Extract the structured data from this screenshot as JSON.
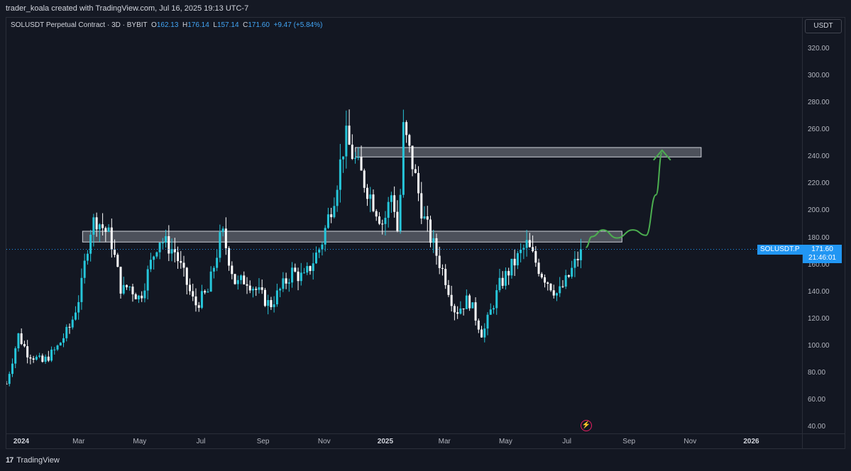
{
  "header": {
    "credit": "trader_koala created with TradingView.com, Jul 16, 2025 19:13 UTC-7"
  },
  "legend": {
    "symbol": "SOLUSDT Perpetual Contract · 3D · BYBIT",
    "o_label": "O",
    "o": "162.13",
    "h_label": "H",
    "h": "176.14",
    "l_label": "L",
    "l": "157.14",
    "c_label": "C",
    "c": "171.60",
    "change": "+9.47 (+5.84%)"
  },
  "price_axis": {
    "currency": "USDT",
    "ticks": [
      "320.00",
      "300.00",
      "280.00",
      "260.00",
      "240.00",
      "220.00",
      "200.00",
      "180.00",
      "160.00",
      "140.00",
      "120.00",
      "100.00",
      "80.00",
      "60.00",
      "40.00"
    ]
  },
  "time_axis": {
    "ticks": [
      {
        "label": "2024",
        "year": true
      },
      {
        "label": "Mar",
        "year": false
      },
      {
        "label": "May",
        "year": false
      },
      {
        "label": "Jul",
        "year": false
      },
      {
        "label": "Sep",
        "year": false
      },
      {
        "label": "Nov",
        "year": false
      },
      {
        "label": "2025",
        "year": true
      },
      {
        "label": "Mar",
        "year": false
      },
      {
        "label": "May",
        "year": false
      },
      {
        "label": "Jul",
        "year": false
      },
      {
        "label": "Sep",
        "year": false
      },
      {
        "label": "Nov",
        "year": false
      },
      {
        "label": "2026",
        "year": true
      }
    ]
  },
  "last_price": {
    "symbol_tag": "SOLUSDT.P",
    "price": "171.60",
    "countdown": "21:46:01"
  },
  "footer": {
    "brand": "TradingView",
    "logo_mark": "17"
  },
  "colors": {
    "up": "#26c6da",
    "down": "#ffffff",
    "zone_fill": "#9598a1",
    "arrow": "#4caf50",
    "accent": "#2196f3"
  },
  "chart_data": {
    "type": "candlestick",
    "timeframe": "3D",
    "y_range": [
      30,
      330
    ],
    "x_range": [
      "2023-12-20",
      "2026-02-10"
    ],
    "zones": [
      {
        "start": "2024-03-05",
        "end": "2025-08-25",
        "low": 177,
        "high": 185
      },
      {
        "start": "2024-12-02",
        "end": "2025-11-12",
        "low": 240,
        "high": 247
      }
    ],
    "projection": [
      {
        "date": "2025-07-20",
        "price": 173
      },
      {
        "date": "2025-07-26",
        "price": 181
      },
      {
        "date": "2025-08-06",
        "price": 186
      },
      {
        "date": "2025-08-20",
        "price": 180
      },
      {
        "date": "2025-09-05",
        "price": 186
      },
      {
        "date": "2025-09-18",
        "price": 182
      },
      {
        "date": "2025-09-28",
        "price": 212
      },
      {
        "date": "2025-10-04",
        "price": 243
      }
    ],
    "arrow_head": {
      "date": "2025-10-04",
      "price": 245
    },
    "anchors": [
      {
        "date": "2023-12-20",
        "price": 72
      },
      {
        "date": "2024-01-01",
        "price": 108
      },
      {
        "date": "2024-01-10",
        "price": 95
      },
      {
        "date": "2024-01-25",
        "price": 88
      },
      {
        "date": "2024-02-08",
        "price": 98
      },
      {
        "date": "2024-02-22",
        "price": 115
      },
      {
        "date": "2024-03-03",
        "price": 140
      },
      {
        "date": "2024-03-12",
        "price": 185
      },
      {
        "date": "2024-03-18",
        "price": 195
      },
      {
        "date": "2024-04-02",
        "price": 180
      },
      {
        "date": "2024-04-13",
        "price": 140
      },
      {
        "date": "2024-04-20",
        "price": 145
      },
      {
        "date": "2024-05-01",
        "price": 135
      },
      {
        "date": "2024-05-20",
        "price": 180
      },
      {
        "date": "2024-06-05",
        "price": 170
      },
      {
        "date": "2024-06-25",
        "price": 130
      },
      {
        "date": "2024-07-08",
        "price": 140
      },
      {
        "date": "2024-07-22",
        "price": 185
      },
      {
        "date": "2024-08-05",
        "price": 145
      },
      {
        "date": "2024-08-15",
        "price": 150
      },
      {
        "date": "2024-09-08",
        "price": 130
      },
      {
        "date": "2024-09-30",
        "price": 155
      },
      {
        "date": "2024-10-12",
        "price": 150
      },
      {
        "date": "2024-10-29",
        "price": 175
      },
      {
        "date": "2024-11-12",
        "price": 215
      },
      {
        "date": "2024-11-22",
        "price": 255
      },
      {
        "date": "2024-12-03",
        "price": 235
      },
      {
        "date": "2024-12-12",
        "price": 220
      },
      {
        "date": "2024-12-30",
        "price": 190
      },
      {
        "date": "2025-01-08",
        "price": 215
      },
      {
        "date": "2025-01-14",
        "price": 180
      },
      {
        "date": "2025-01-19",
        "price": 260
      },
      {
        "date": "2025-01-28",
        "price": 235
      },
      {
        "date": "2025-02-08",
        "price": 195
      },
      {
        "date": "2025-02-20",
        "price": 170
      },
      {
        "date": "2025-03-02",
        "price": 150
      },
      {
        "date": "2025-03-12",
        "price": 125
      },
      {
        "date": "2025-03-25",
        "price": 135
      },
      {
        "date": "2025-04-08",
        "price": 108
      },
      {
        "date": "2025-04-25",
        "price": 145
      },
      {
        "date": "2025-05-08",
        "price": 160
      },
      {
        "date": "2025-05-22",
        "price": 175
      },
      {
        "date": "2025-06-05",
        "price": 155
      },
      {
        "date": "2025-06-22",
        "price": 138
      },
      {
        "date": "2025-07-02",
        "price": 150
      },
      {
        "date": "2025-07-16",
        "price": 171.6
      }
    ]
  }
}
